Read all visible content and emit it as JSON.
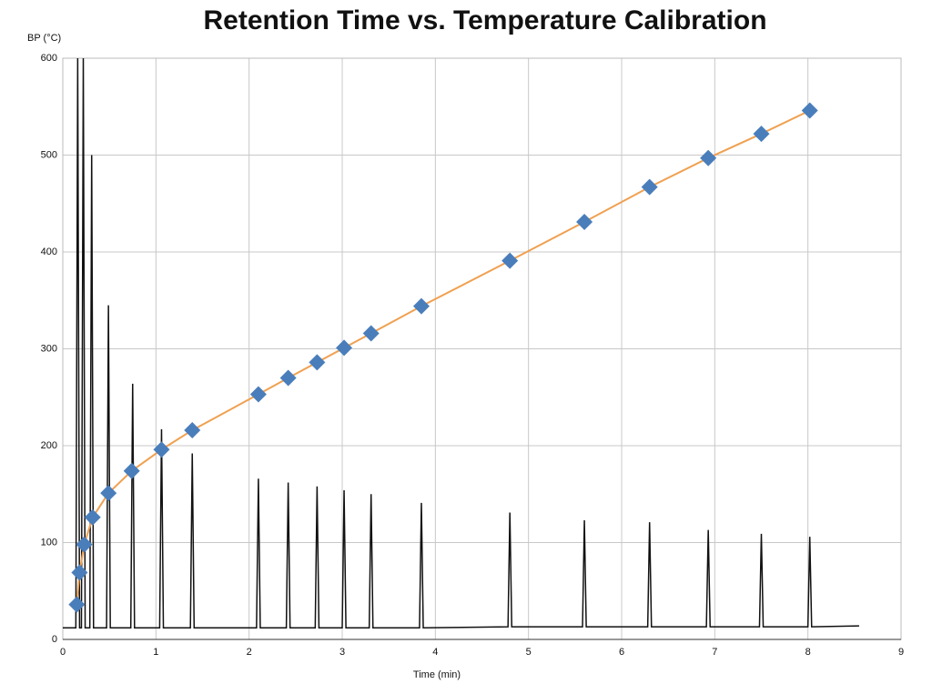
{
  "chart_data": {
    "type": "line",
    "title": "Retention Time vs. Temperature Calibration",
    "x_label": "Time (min)",
    "y_label": "BP (°C)",
    "xlim": [
      0,
      9
    ],
    "xticks": [
      0,
      1,
      2,
      3,
      4,
      5,
      6,
      7,
      8,
      9
    ],
    "ylim": [
      0,
      600
    ],
    "yticks": [
      0,
      100,
      200,
      300,
      400,
      500,
      600
    ],
    "grid": true,
    "series": [
      {
        "color": "#111111",
        "marker": "none",
        "x": [
          0,
          0.14,
          0.16,
          0.18,
          0.2,
          0.22,
          0.24,
          0.29,
          0.31,
          0.33,
          0.47,
          0.49,
          0.51,
          0.73,
          0.75,
          0.77,
          1.04,
          1.06,
          1.08,
          1.37,
          1.39,
          1.41,
          2.08,
          2.1,
          2.12,
          2.4,
          2.42,
          2.44,
          2.71,
          2.73,
          2.75,
          3.0,
          3.02,
          3.04,
          3.29,
          3.31,
          3.33,
          3.83,
          3.85,
          3.87,
          4.78,
          4.8,
          4.82,
          5.58,
          5.6,
          5.62,
          6.28,
          6.3,
          6.32,
          6.91,
          6.93,
          6.95,
          7.48,
          7.5,
          7.52,
          8.0,
          8.02,
          8.04,
          8.55
        ],
        "values": [
          12,
          12,
          600,
          12,
          12,
          600,
          12,
          12,
          500,
          12,
          12,
          345,
          12,
          12,
          264,
          12,
          12,
          217,
          12,
          12,
          192,
          12,
          12,
          166,
          12,
          12,
          162,
          12,
          12,
          158,
          12,
          12,
          154,
          12,
          12,
          150,
          12,
          12,
          141,
          12,
          13,
          131,
          13,
          13,
          123,
          13,
          13,
          121,
          13,
          13,
          113,
          13,
          13,
          109,
          13,
          13,
          106,
          13,
          14
        ]
      },
      {
        "color": "#f0a050",
        "marker": "diamond",
        "marker_color": "#4a7ebb",
        "x": [
          0.15,
          0.18,
          0.23,
          0.32,
          0.49,
          0.74,
          1.06,
          1.39,
          2.1,
          2.42,
          2.73,
          3.02,
          3.31,
          3.85,
          4.8,
          5.6,
          6.3,
          6.93,
          7.5,
          8.02
        ],
        "values": [
          36,
          69,
          98,
          126,
          151,
          174,
          196,
          216,
          253,
          270,
          286,
          301,
          316,
          344,
          391,
          431,
          467,
          497,
          522,
          546
        ]
      }
    ]
  }
}
